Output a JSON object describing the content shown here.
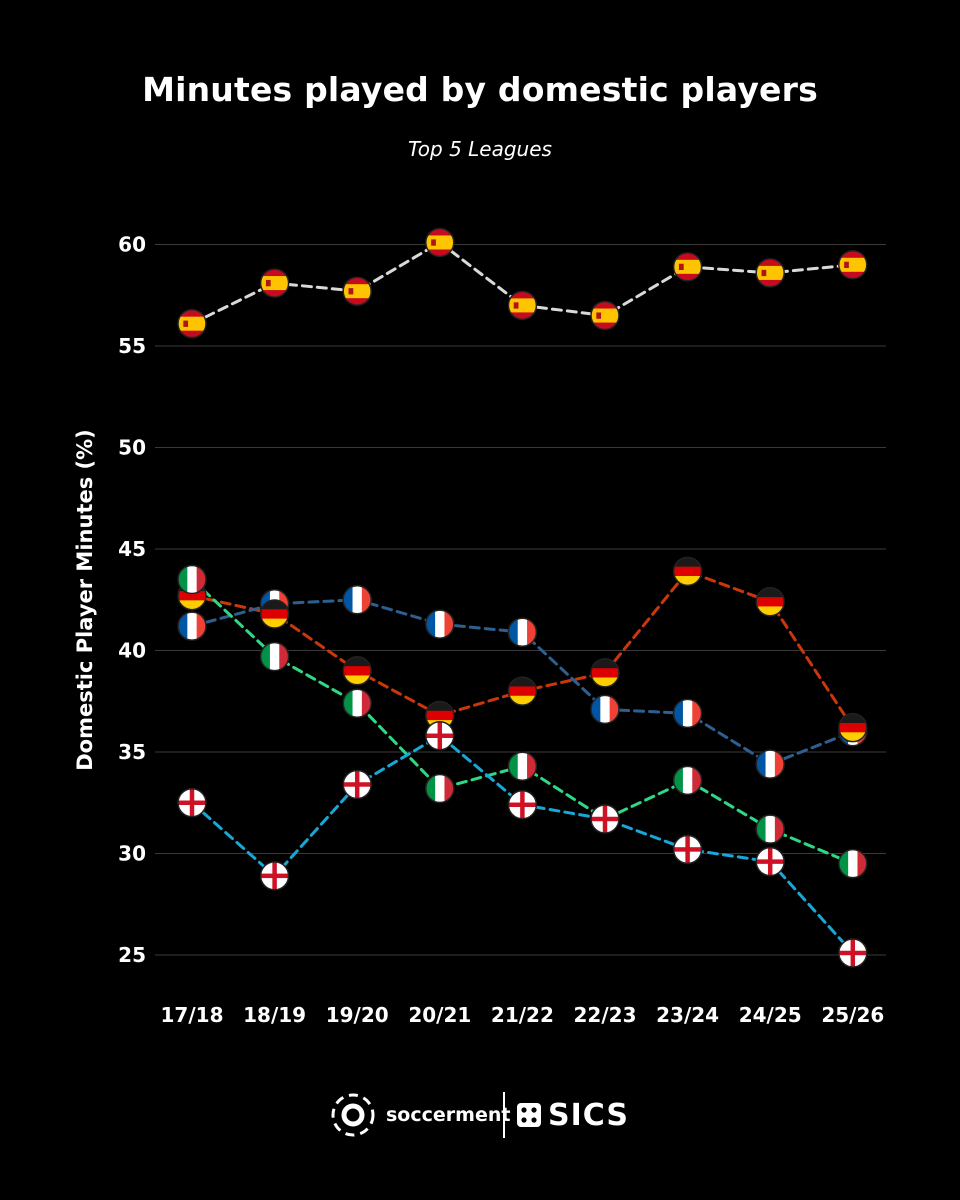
{
  "chart_data": {
    "type": "line",
    "title": "Minutes played by domestic players",
    "subtitle": "Top 5 Leagues",
    "ylabel": "Domestic Player Minutes (%)",
    "xlabel": "",
    "categories": [
      "17/18",
      "18/19",
      "19/20",
      "20/21",
      "21/22",
      "22/23",
      "23/24",
      "24/25",
      "25/26"
    ],
    "ylim": [
      25,
      62
    ],
    "yticks": [
      25,
      30,
      35,
      40,
      45,
      50,
      55,
      60
    ],
    "grid": true,
    "line_style": "dashed",
    "markers": "flag icons",
    "series": [
      {
        "country": "Spain",
        "flag": "spain-flag-icon",
        "color": "#d9d9d9",
        "values": [
          56.1,
          58.1,
          57.7,
          60.1,
          57.0,
          56.5,
          58.9,
          58.6,
          59.0
        ]
      },
      {
        "country": "Germany",
        "flag": "germany-flag-icon",
        "color": "#c9370b",
        "values": [
          42.7,
          41.8,
          39.0,
          36.8,
          38.0,
          38.9,
          43.9,
          42.4,
          36.2
        ]
      },
      {
        "country": "France",
        "flag": "france-flag-icon",
        "color": "#2d5f8f",
        "values": [
          41.2,
          42.3,
          42.5,
          41.3,
          40.9,
          37.1,
          36.9,
          34.4,
          36.0
        ]
      },
      {
        "country": "Italy",
        "flag": "italy-flag-icon",
        "color": "#2ed884",
        "values": [
          43.5,
          39.7,
          37.4,
          33.2,
          34.3,
          31.7,
          33.6,
          31.2,
          29.5
        ]
      },
      {
        "country": "England",
        "flag": "england-flag-icon",
        "color": "#18a7d6",
        "values": [
          32.5,
          28.9,
          33.4,
          35.8,
          32.4,
          31.7,
          30.2,
          29.6,
          25.1
        ]
      }
    ]
  },
  "footer": {
    "brand_left": "soccerment",
    "brand_right": "SICS"
  }
}
